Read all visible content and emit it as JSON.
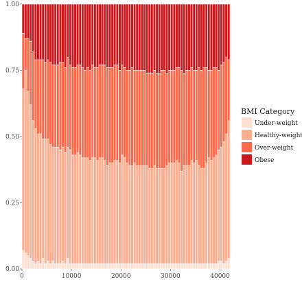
{
  "chart_data": {
    "type": "bar",
    "stacked": true,
    "normalized": true,
    "title": "",
    "xlabel": "",
    "ylabel": "",
    "xlim": [
      0,
      42000
    ],
    "ylim": [
      0,
      1
    ],
    "bin_width": 500,
    "x_ticks": [
      0,
      10000,
      20000,
      30000,
      40000
    ],
    "y_ticks": [
      0.0,
      0.25,
      0.5,
      0.75,
      1.0
    ],
    "y_tick_labels": [
      "0.00",
      "0.25",
      "0.50",
      "0.75",
      "1.00"
    ],
    "grid": false,
    "legend": {
      "title": "BMI Category",
      "position": "right"
    },
    "series": [
      {
        "name": "Under-weight",
        "color": "#fee0d2"
      },
      {
        "name": "Healthy-weight",
        "color": "#fcae91"
      },
      {
        "name": "Over-weight",
        "color": "#fb6a4a"
      },
      {
        "name": "Obese",
        "color": "#cb181d"
      }
    ],
    "x": [
      250,
      750,
      1250,
      1750,
      2250,
      2750,
      3250,
      3750,
      4250,
      4750,
      5250,
      5750,
      6250,
      6750,
      7250,
      7750,
      8250,
      8750,
      9250,
      9750,
      10250,
      10750,
      11250,
      11750,
      12250,
      12750,
      13250,
      13750,
      14250,
      14750,
      15250,
      15750,
      16250,
      16750,
      17250,
      17750,
      18250,
      18750,
      19250,
      19750,
      20250,
      20750,
      21250,
      21750,
      22250,
      22750,
      23250,
      23750,
      24250,
      24750,
      25250,
      25750,
      26250,
      26750,
      27250,
      27750,
      28250,
      28750,
      29250,
      29750,
      30250,
      30750,
      31250,
      31750,
      32250,
      32750,
      33250,
      33750,
      34250,
      34750,
      35250,
      35750,
      36250,
      36750,
      37250,
      37750,
      38250,
      38750,
      39250,
      39750,
      40250,
      40750,
      41250,
      41750
    ],
    "under_weight": [
      0.07,
      0.06,
      0.05,
      0.04,
      0.03,
      0.02,
      0.03,
      0.02,
      0.04,
      0.02,
      0.03,
      0.02,
      0.03,
      0.02,
      0.02,
      0.02,
      0.03,
      0.02,
      0.04,
      0.02,
      0.02,
      0.02,
      0.02,
      0.02,
      0.02,
      0.02,
      0.02,
      0.02,
      0.02,
      0.02,
      0.02,
      0.02,
      0.02,
      0.02,
      0.02,
      0.02,
      0.02,
      0.02,
      0.02,
      0.02,
      0.02,
      0.02,
      0.02,
      0.02,
      0.02,
      0.02,
      0.02,
      0.02,
      0.02,
      0.02,
      0.02,
      0.02,
      0.02,
      0.02,
      0.02,
      0.02,
      0.02,
      0.02,
      0.02,
      0.02,
      0.02,
      0.02,
      0.02,
      0.02,
      0.02,
      0.02,
      0.02,
      0.02,
      0.02,
      0.02,
      0.02,
      0.02,
      0.02,
      0.02,
      0.02,
      0.02,
      0.02,
      0.02,
      0.02,
      0.03,
      0.03,
      0.02,
      0.03,
      0.04
    ],
    "healthy_weight": [
      0.61,
      0.69,
      0.62,
      0.58,
      0.53,
      0.51,
      0.48,
      0.49,
      0.45,
      0.47,
      0.46,
      0.45,
      0.43,
      0.44,
      0.44,
      0.43,
      0.43,
      0.42,
      0.42,
      0.43,
      0.41,
      0.41,
      0.42,
      0.41,
      0.4,
      0.4,
      0.4,
      0.39,
      0.4,
      0.4,
      0.39,
      0.4,
      0.4,
      0.39,
      0.37,
      0.38,
      0.38,
      0.39,
      0.39,
      0.38,
      0.41,
      0.4,
      0.38,
      0.37,
      0.37,
      0.38,
      0.37,
      0.37,
      0.37,
      0.37,
      0.37,
      0.36,
      0.36,
      0.37,
      0.36,
      0.36,
      0.36,
      0.36,
      0.37,
      0.38,
      0.38,
      0.38,
      0.39,
      0.38,
      0.35,
      0.37,
      0.37,
      0.37,
      0.39,
      0.38,
      0.39,
      0.37,
      0.36,
      0.36,
      0.38,
      0.4,
      0.39,
      0.4,
      0.41,
      0.42,
      0.43,
      0.46,
      0.48,
      0.52
    ],
    "over_weight": [
      0.21,
      0.12,
      0.2,
      0.24,
      0.26,
      0.26,
      0.28,
      0.28,
      0.3,
      0.29,
      0.3,
      0.31,
      0.31,
      0.31,
      0.31,
      0.33,
      0.32,
      0.32,
      0.34,
      0.32,
      0.33,
      0.33,
      0.33,
      0.34,
      0.34,
      0.33,
      0.34,
      0.34,
      0.35,
      0.34,
      0.35,
      0.35,
      0.35,
      0.36,
      0.37,
      0.36,
      0.36,
      0.36,
      0.36,
      0.35,
      0.34,
      0.34,
      0.35,
      0.36,
      0.37,
      0.35,
      0.36,
      0.36,
      0.36,
      0.36,
      0.35,
      0.36,
      0.36,
      0.36,
      0.36,
      0.36,
      0.37,
      0.37,
      0.35,
      0.35,
      0.35,
      0.35,
      0.35,
      0.36,
      0.38,
      0.35,
      0.36,
      0.36,
      0.35,
      0.35,
      0.34,
      0.37,
      0.37,
      0.38,
      0.36,
      0.33,
      0.34,
      0.34,
      0.33,
      0.3,
      0.31,
      0.3,
      0.29,
      0.23
    ],
    "obese": [
      0.11,
      0.13,
      0.13,
      0.14,
      0.18,
      0.21,
      0.21,
      0.21,
      0.21,
      0.22,
      0.21,
      0.22,
      0.23,
      0.23,
      0.23,
      0.22,
      0.22,
      0.24,
      0.2,
      0.23,
      0.24,
      0.24,
      0.23,
      0.23,
      0.24,
      0.25,
      0.24,
      0.25,
      0.23,
      0.24,
      0.24,
      0.23,
      0.23,
      0.23,
      0.24,
      0.24,
      0.24,
      0.23,
      0.23,
      0.25,
      0.23,
      0.24,
      0.25,
      0.25,
      0.24,
      0.25,
      0.25,
      0.25,
      0.25,
      0.25,
      0.26,
      0.26,
      0.26,
      0.25,
      0.26,
      0.26,
      0.25,
      0.25,
      0.26,
      0.25,
      0.25,
      0.25,
      0.24,
      0.24,
      0.25,
      0.26,
      0.25,
      0.25,
      0.24,
      0.25,
      0.25,
      0.24,
      0.25,
      0.24,
      0.24,
      0.25,
      0.25,
      0.24,
      0.24,
      0.25,
      0.23,
      0.22,
      0.2,
      0.21
    ]
  }
}
